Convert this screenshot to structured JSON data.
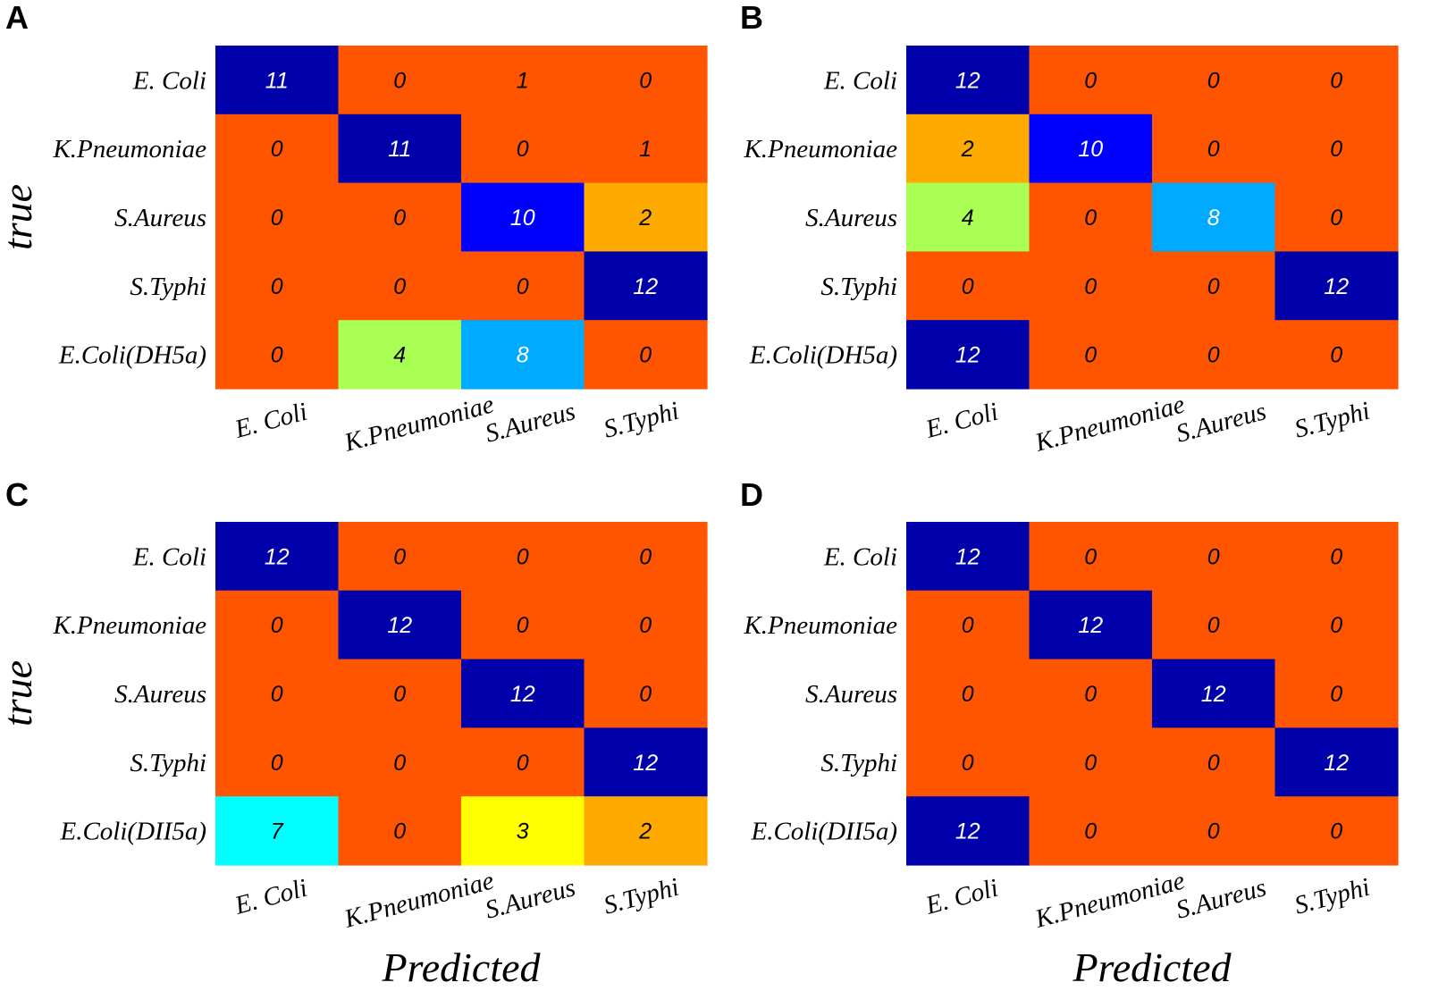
{
  "colors": {
    "scale": [
      {
        "value": 0,
        "color": "#FF5500"
      },
      {
        "value": 2,
        "color": "#FFAA00"
      },
      {
        "value": 3,
        "color": "#FFFF00"
      },
      {
        "value": 4,
        "color": "#AAFF55"
      },
      {
        "value": 7,
        "color": "#00FFFF"
      },
      {
        "value": 8,
        "color": "#00AAFF"
      },
      {
        "value": 10,
        "color": "#0000FF"
      },
      {
        "value": 11,
        "color": "#0000AA"
      },
      {
        "value": 12,
        "color": "#0000AA"
      }
    ],
    "dark_text": "#000000",
    "light_text": "#ffffff"
  },
  "chart_data": [
    {
      "type": "heatmap",
      "panel": "A",
      "ylabel": "true",
      "xlabel": "",
      "rows": [
        "E. Coli",
        "K.Pneumoniae",
        "S.Aureus",
        "S.Typhi",
        "E.Coli(DH5a)"
      ],
      "columns": [
        "E. Coli",
        "K.Pneumoniae",
        "S.Aureus",
        "S.Typhi"
      ],
      "values": [
        [
          11,
          0,
          1,
          0
        ],
        [
          0,
          11,
          0,
          1
        ],
        [
          0,
          0,
          10,
          2
        ],
        [
          0,
          0,
          0,
          12
        ],
        [
          0,
          4,
          8,
          0
        ]
      ]
    },
    {
      "type": "heatmap",
      "panel": "B",
      "ylabel": "",
      "xlabel": "",
      "rows": [
        "E. Coli",
        "K.Pneumoniae",
        "S.Aureus",
        "S.Typhi",
        "E.Coli(DH5a)"
      ],
      "columns": [
        "E. Coli",
        "K.Pneumoniae",
        "S.Aureus",
        "S.Typhi"
      ],
      "values": [
        [
          12,
          0,
          0,
          0
        ],
        [
          2,
          10,
          0,
          0
        ],
        [
          4,
          0,
          8,
          0
        ],
        [
          0,
          0,
          0,
          12
        ],
        [
          12,
          0,
          0,
          0
        ]
      ]
    },
    {
      "type": "heatmap",
      "panel": "C",
      "ylabel": "true",
      "xlabel": "Predicted",
      "rows": [
        "E. Coli",
        "K.Pneumoniae",
        "S.Aureus",
        "S.Typhi",
        "E.Coli(DII5a)"
      ],
      "columns": [
        "E. Coli",
        "K.Pneumoniae",
        "S.Aureus",
        "S.Typhi"
      ],
      "values": [
        [
          12,
          0,
          0,
          0
        ],
        [
          0,
          12,
          0,
          0
        ],
        [
          0,
          0,
          12,
          0
        ],
        [
          0,
          0,
          0,
          12
        ],
        [
          7,
          0,
          3,
          2
        ]
      ]
    },
    {
      "type": "heatmap",
      "panel": "D",
      "ylabel": "",
      "xlabel": "Predicted",
      "rows": [
        "E. Coli",
        "K.Pneumoniae",
        "S.Aureus",
        "S.Typhi",
        "E.Coli(DII5a)"
      ],
      "columns": [
        "E. Coli",
        "K.Pneumoniae",
        "S.Aureus",
        "S.Typhi"
      ],
      "values": [
        [
          12,
          0,
          0,
          0
        ],
        [
          0,
          12,
          0,
          0
        ],
        [
          0,
          0,
          12,
          0
        ],
        [
          0,
          0,
          0,
          12
        ],
        [
          12,
          0,
          0,
          0
        ]
      ]
    }
  ]
}
